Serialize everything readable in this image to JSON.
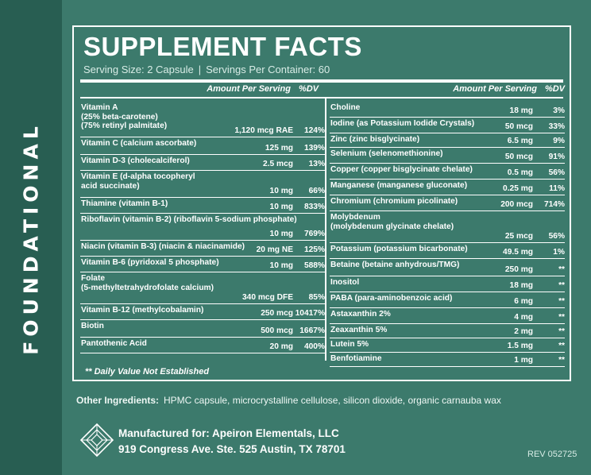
{
  "side_label": "FOUNDATIONAL",
  "title": "SUPPLEMENT FACTS",
  "serving": {
    "size": "Serving Size: 2 Capsule",
    "separator": "|",
    "per_container": "Servings Per Container:  60"
  },
  "column_header": {
    "amount": "Amount Per Serving",
    "dv": "%DV"
  },
  "left_rows": [
    {
      "name": "Vitamin A\n(25% beta-carotene)\n(75% retinyl palmitate)",
      "amount": "1,120 mcg RAE",
      "dv": "124%"
    },
    {
      "name": "Vitamin C (calcium ascorbate)",
      "amount": "125 mg",
      "dv": "139%"
    },
    {
      "name": "Vitamin D-3 (cholecalciferol)",
      "amount": "2.5 mcg",
      "dv": "13%"
    },
    {
      "name": "Vitamin E (d-alpha tocopheryl\nacid succinate)",
      "amount": "10 mg",
      "dv": "66%"
    },
    {
      "name": "Thiamine (vitamin B-1)",
      "amount": "10 mg",
      "dv": "833%"
    },
    {
      "name": "Riboflavin (vitamin B-2) (riboflavin 5-sodium phosphate)",
      "amount": "10 mg",
      "dv": "769%"
    },
    {
      "name": "Niacin (vitamin B-3) (niacin & niacinamide)",
      "amount": "20 mg NE",
      "dv": "125%"
    },
    {
      "name": "Vitamin B-6 (pyridoxal 5 phosphate)",
      "amount": "10 mg",
      "dv": "588%"
    },
    {
      "name": "Folate\n(5-methyltetrahydrofolate calcium)",
      "amount": "340 mcg DFE",
      "dv": "85%"
    },
    {
      "name": "Vitamin B-12 (methylcobalamin)",
      "amount": "250 mcg",
      "dv": "10417%"
    },
    {
      "name": "Biotin",
      "amount": "500 mcg",
      "dv": "1667%"
    },
    {
      "name": "Pantothenic Acid",
      "amount": "20 mg",
      "dv": "400%"
    }
  ],
  "right_rows": [
    {
      "name": "Choline",
      "amount": "18 mg",
      "dv": "3%"
    },
    {
      "name": "Iodine (as Potassium Iodide Crystals)",
      "amount": "50 mcg",
      "dv": "33%"
    },
    {
      "name": "Zinc (zinc bisglycinate)",
      "amount": "6.5 mg",
      "dv": "9%"
    },
    {
      "name": "Selenium (selenomethionine)",
      "amount": "50 mcg",
      "dv": "91%"
    },
    {
      "name": "Copper (copper bisglycinate chelate)",
      "amount": "0.5 mg",
      "dv": "56%"
    },
    {
      "name": "Manganese (manganese gluconate)",
      "amount": "0.25 mg",
      "dv": "11%"
    },
    {
      "name": "Chromium (chromium picolinate)",
      "amount": "200 mcg",
      "dv": "714%"
    },
    {
      "name": "Molybdenum\n(molybdenum glycinate chelate)",
      "amount": "25 mcg",
      "dv": "56%"
    },
    {
      "name": "Potassium (potassium bicarbonate)",
      "amount": "49.5 mg",
      "dv": "1%"
    },
    {
      "name": "Betaine (betaine anhydrous/TMG)",
      "amount": "250 mg",
      "dv": "**"
    },
    {
      "name": "Inositol",
      "amount": "18 mg",
      "dv": "**"
    },
    {
      "name": "PABA (para-aminobenzoic acid)",
      "amount": "6 mg",
      "dv": "**"
    },
    {
      "name": "Astaxanthin 2%",
      "amount": "4 mg",
      "dv": "**"
    },
    {
      "name": "Zeaxanthin 5%",
      "amount": "2 mg",
      "dv": "**"
    },
    {
      "name": "Lutein 5%",
      "amount": "1.5 mg",
      "dv": "**"
    },
    {
      "name": "Benfotiamine",
      "amount": "1 mg",
      "dv": "**"
    }
  ],
  "footnote": "** Daily Value Not Established",
  "other_ingredients": {
    "label": "Other Ingredients:",
    "text": "HPMC capsule, microcrystalline cellulose, silicon dioxide, organic carnauba wax"
  },
  "manufacturer": {
    "line1": "Manufactured for: Apeiron Elementals, LLC",
    "line2": "919 Congress Ave. Ste. 525 Austin, TX 78701"
  },
  "revision": "REV 052725",
  "logo_icon": "diamond-logo-icon",
  "colors": {
    "background": "#3c7a6c",
    "side_band": "#285e52",
    "text": "#ffffff"
  }
}
